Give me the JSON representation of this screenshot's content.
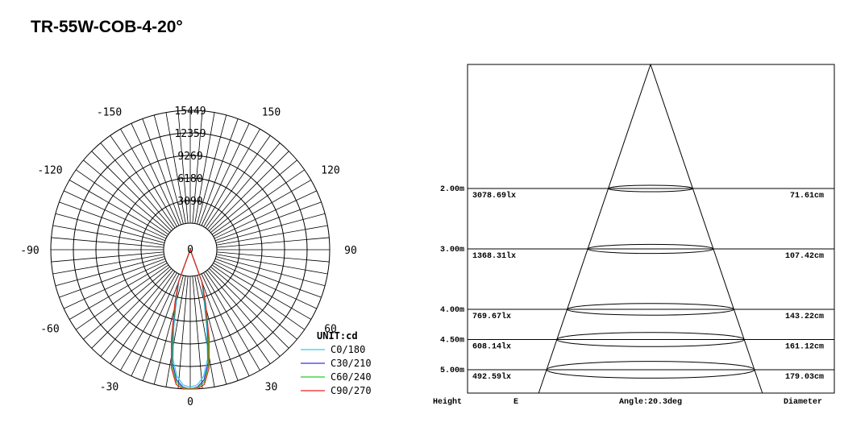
{
  "title": "TR-55W-COB-4-20°",
  "chart_data": [
    {
      "type": "polar",
      "unit_label": "UNIT:cd",
      "radial_max": 15449,
      "radial_ticks": [
        "3090",
        "6180",
        "9269",
        "12359",
        "15449"
      ],
      "radial_tick_values": [
        3090,
        6180,
        9269,
        12359,
        15449
      ],
      "center_label": "0",
      "angle_labels": [
        {
          "text": "-150",
          "angle": -150
        },
        {
          "text": "150",
          "angle": 150
        },
        {
          "text": "-120",
          "angle": -120
        },
        {
          "text": "120",
          "angle": 120
        },
        {
          "text": "-90",
          "angle": -90
        },
        {
          "text": "90",
          "angle": 90
        },
        {
          "text": "-60",
          "angle": -60
        },
        {
          "text": "60",
          "angle": 60
        },
        {
          "text": "-30",
          "angle": -30
        },
        {
          "text": "30",
          "angle": 30
        },
        {
          "text": "0",
          "angle": 0
        }
      ],
      "series": [
        {
          "name": "C0/180",
          "color": "#33ccee",
          "angles": [
            -20,
            -16,
            -12,
            -9,
            -6,
            -3,
            0,
            3,
            6,
            9,
            12,
            16,
            20
          ],
          "values": [
            900,
            3000,
            7200,
            11500,
            13800,
            14900,
            15200,
            14900,
            13800,
            11500,
            7200,
            3000,
            900
          ]
        },
        {
          "name": "C30/210",
          "color": "#3333ee",
          "angles": [
            -20,
            -16,
            -12,
            -9,
            -6,
            -3,
            0,
            3,
            6,
            9,
            12,
            16,
            20
          ],
          "values": [
            1000,
            3400,
            7800,
            12000,
            14300,
            15200,
            15449,
            15200,
            14300,
            12000,
            7800,
            3400,
            1000
          ]
        },
        {
          "name": "C60/240",
          "color": "#22cc22",
          "angles": [
            -20,
            -16,
            -12,
            -9,
            -6,
            -3,
            0,
            3,
            6,
            9,
            12,
            16,
            20
          ],
          "values": [
            1100,
            3600,
            8200,
            12400,
            14600,
            15300,
            15400,
            15300,
            14600,
            12400,
            8200,
            3600,
            1100
          ]
        },
        {
          "name": "C90/270",
          "color": "#ee2222",
          "angles": [
            -20,
            -16,
            -12,
            -9,
            -6,
            -3,
            0,
            3,
            6,
            9,
            12,
            16,
            20
          ],
          "values": [
            1200,
            4000,
            8800,
            12800,
            14900,
            15449,
            15449,
            15449,
            14900,
            12800,
            8800,
            4000,
            1200
          ]
        }
      ]
    },
    {
      "type": "table",
      "columns": [
        "Height",
        "E",
        "Angle:20.3deg",
        "Diameter"
      ],
      "rows": [
        {
          "height": "2.00m",
          "e": "3078.69lx",
          "diameter": "71.61cm",
          "height_value": 2.0
        },
        {
          "height": "3.00m",
          "e": "1368.31lx",
          "diameter": "107.42cm",
          "height_value": 3.0
        },
        {
          "height": "4.00m",
          "e": "769.67lx",
          "diameter": "143.22cm",
          "height_value": 4.0
        },
        {
          "height": "4.50m",
          "e": "608.14lx",
          "diameter": "161.12cm",
          "height_value": 4.5
        },
        {
          "height": "5.00m",
          "e": "492.59lx",
          "diameter": "179.03cm",
          "height_value": 5.0
        }
      ],
      "beam_angle_deg": 20.3
    }
  ]
}
